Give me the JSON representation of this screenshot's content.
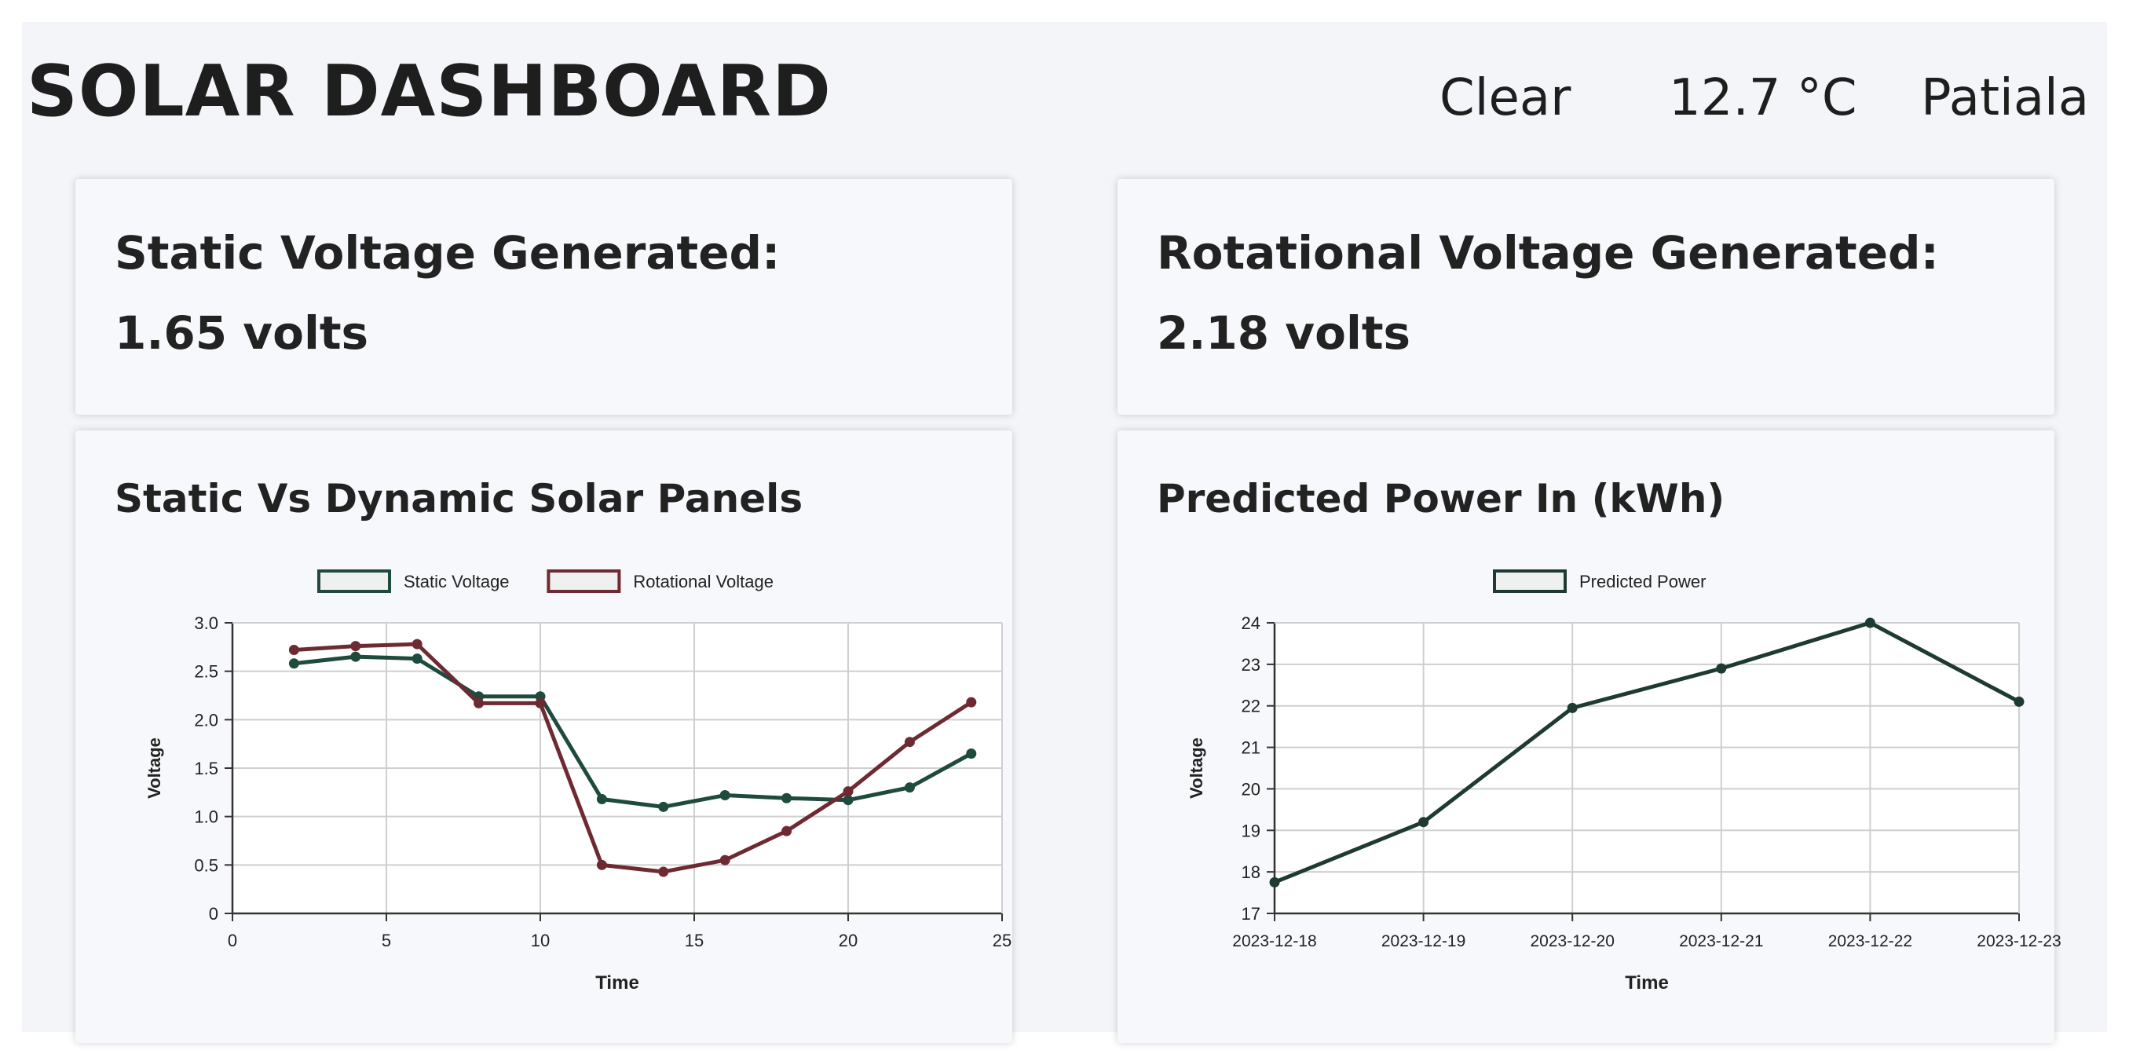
{
  "header": {
    "title": "SOLAR DASHBOARD",
    "weather_icon": "moon-icon",
    "condition": "Clear",
    "temperature": "12.7 °C",
    "location": "Patiala"
  },
  "stats": {
    "static_label": "Static Voltage Generated:",
    "static_value": "1.65 volts",
    "rotational_label": "Rotational Voltage Generated:",
    "rotational_value": "2.18 volts"
  },
  "colors": {
    "static": "#1f4a3e",
    "rotational": "#6e2a33",
    "predicted": "#1f3a33"
  },
  "chart_data": [
    {
      "title": "Static Vs Dynamic Solar Panels",
      "type": "line",
      "xlabel": "Time",
      "ylabel": "Voltage",
      "xlim": [
        0,
        25
      ],
      "ylim": [
        0,
        3.0
      ],
      "xticks": [
        "0",
        "5",
        "10",
        "15",
        "20",
        "25"
      ],
      "yticks": [
        "0",
        "0.5",
        "1.0",
        "1.5",
        "2.0",
        "2.5",
        "3.0"
      ],
      "grid": true,
      "legend": "top",
      "x": [
        2,
        4,
        6,
        8,
        10,
        12,
        14,
        16,
        18,
        20,
        22,
        24
      ],
      "series": [
        {
          "name": "Static Voltage",
          "values": [
            2.58,
            2.65,
            2.63,
            2.24,
            2.24,
            1.18,
            1.1,
            1.22,
            1.19,
            1.17,
            1.3,
            1.65
          ]
        },
        {
          "name": "Rotational Voltage",
          "values": [
            2.72,
            2.76,
            2.78,
            2.17,
            2.17,
            0.5,
            0.43,
            0.55,
            0.85,
            1.26,
            1.77,
            2.18
          ]
        }
      ]
    },
    {
      "title": "Predicted Power In (kWh)",
      "type": "line",
      "xlabel": "Time",
      "ylabel": "Voltage",
      "ylim": [
        17,
        24
      ],
      "yticks": [
        "17",
        "18",
        "19",
        "20",
        "21",
        "22",
        "23",
        "24"
      ],
      "grid": true,
      "legend": "top",
      "categories": [
        "2023-12-18",
        "2023-12-19",
        "2023-12-20",
        "2023-12-21",
        "2023-12-22",
        "2023-12-23"
      ],
      "series": [
        {
          "name": "Predicted Power",
          "values": [
            17.75,
            19.2,
            21.95,
            22.9,
            24.0,
            22.1
          ]
        }
      ]
    }
  ]
}
